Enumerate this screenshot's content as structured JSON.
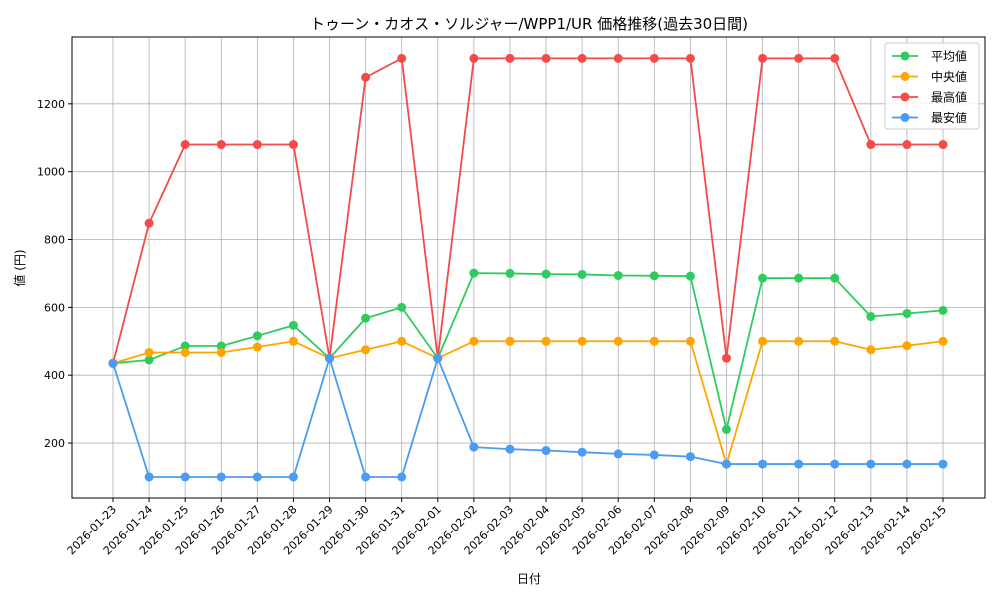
{
  "chart_data": {
    "type": "line",
    "title": "トゥーン・カオス・ソルジャー/WPP1/UR 価格推移(過去30日間)",
    "xlabel": "日付",
    "ylabel": "値 (円)",
    "ylim": [
      38,
      1397
    ],
    "yticks": [
      200,
      400,
      600,
      800,
      1000,
      1200
    ],
    "grid": true,
    "legend_position": "upper right",
    "categories": [
      "2026-01-23",
      "2026-01-24",
      "2026-01-25",
      "2026-01-26",
      "2026-01-27",
      "2026-01-28",
      "2026-01-29",
      "2026-01-30",
      "2026-01-31",
      "2026-02-01",
      "2026-02-02",
      "2026-02-03",
      "2026-02-04",
      "2026-02-05",
      "2026-02-06",
      "2026-02-07",
      "2026-02-08",
      "2026-02-09",
      "2026-02-10",
      "2026-02-11",
      "2026-02-12",
      "2026-02-13",
      "2026-02-14",
      "2026-02-15"
    ],
    "series": [
      {
        "name": "平均値",
        "color": "#2ecc5f",
        "values": [
          435,
          445,
          486,
          486,
          516,
          547,
          450,
          568,
          600,
          450,
          701,
          700,
          698,
          697,
          694,
          693,
          692,
          240,
          686,
          686,
          686,
          573,
          582,
          591
        ]
      },
      {
        "name": "中央値",
        "color": "#ffa500",
        "values": [
          435,
          467,
          467,
          467,
          483,
          500,
          450,
          475,
          500,
          450,
          500,
          500,
          500,
          500,
          500,
          500,
          500,
          138,
          500,
          500,
          500,
          475,
          487,
          500
        ]
      },
      {
        "name": "最高値",
        "color": "#f44a4a",
        "values": [
          435,
          848,
          1080,
          1080,
          1080,
          1080,
          450,
          1278,
          1334,
          450,
          1334,
          1334,
          1334,
          1334,
          1334,
          1334,
          1334,
          450,
          1334,
          1334,
          1334,
          1080,
          1080,
          1080
        ]
      },
      {
        "name": "最安値",
        "color": "#4a9bf4",
        "values": [
          435,
          100,
          100,
          100,
          100,
          100,
          450,
          100,
          100,
          450,
          188,
          182,
          178,
          173,
          168,
          165,
          160,
          138,
          138,
          138,
          138,
          138,
          138,
          138
        ]
      }
    ]
  },
  "legend": {
    "items": [
      "平均値",
      "中央値",
      "最高値",
      "最安値"
    ]
  }
}
